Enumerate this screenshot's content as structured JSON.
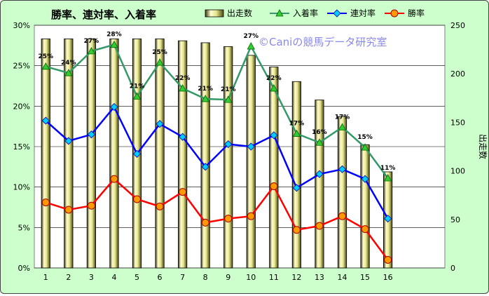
{
  "chart_data": {
    "type": "bar+line",
    "title": "勝率、連対率、入着率",
    "watermark": "©Caniの競馬データ研究室",
    "categories": [
      "1",
      "2",
      "3",
      "4",
      "5",
      "6",
      "7",
      "8",
      "9",
      "10",
      "11",
      "12",
      "13",
      "14",
      "15",
      "16"
    ],
    "y_left": {
      "ticks": [
        "0%",
        "5%",
        "10%",
        "15%",
        "20%",
        "25%",
        "30%"
      ],
      "range": [
        0,
        30
      ]
    },
    "y_right": {
      "label": "出走数",
      "ticks": [
        "0",
        "50",
        "100",
        "150",
        "200",
        "250"
      ],
      "range": [
        0,
        250
      ]
    },
    "grid": true,
    "legend_position": "top",
    "bar_series": {
      "name": "出走数",
      "axis": "right",
      "color": "#e8e68c",
      "values": [
        236,
        236,
        236,
        236,
        236,
        236,
        234,
        232,
        228,
        219,
        207,
        192,
        173,
        156,
        127,
        99
      ]
    },
    "line_series": [
      {
        "name": "入着率",
        "axis": "left",
        "color": "#339966",
        "marker": "triangle",
        "marker_fill": "#33cc33",
        "values": [
          24.9,
          24.1,
          26.8,
          27.6,
          21.2,
          25.4,
          22.2,
          20.9,
          20.8,
          27.4,
          22.2,
          16.6,
          15.5,
          17.4,
          14.9,
          11.1
        ],
        "labels": [
          "25%",
          "24%",
          "27%",
          "28%",
          "21%",
          "25%",
          "22%",
          "21%",
          "21%",
          "27%",
          "22%",
          "17%",
          "16%",
          "17%",
          "15%",
          "11%"
        ]
      },
      {
        "name": "連対率",
        "axis": "left",
        "color": "#0000ff",
        "marker": "diamond",
        "marker_fill": "#00ccff",
        "values": [
          18.2,
          15.7,
          16.5,
          19.9,
          14.1,
          17.8,
          16.2,
          12.5,
          15.3,
          15.0,
          16.4,
          9.9,
          11.6,
          12.2,
          11.0,
          6.1
        ]
      },
      {
        "name": "勝率",
        "axis": "left",
        "color": "#ff0000",
        "marker": "circle",
        "marker_fill": "#ff9900",
        "values": [
          8.1,
          7.2,
          7.7,
          11.0,
          8.5,
          7.6,
          9.4,
          5.6,
          6.1,
          6.4,
          10.1,
          4.7,
          5.2,
          6.4,
          4.8,
          1.0
        ]
      }
    ]
  }
}
